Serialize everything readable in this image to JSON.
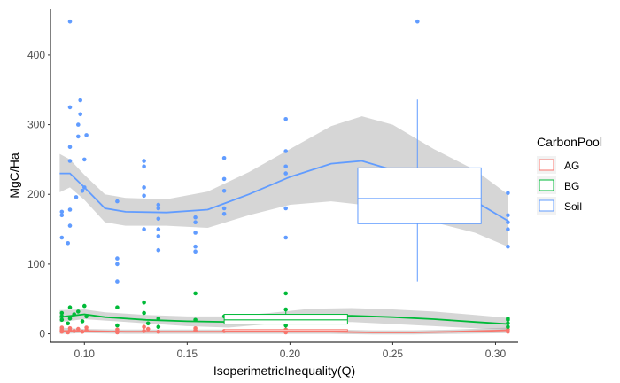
{
  "chart_data": {
    "type": "scatter",
    "xlabel": "IsoperimetricInequality(Q)",
    "ylabel": "MgC/Ha",
    "xlim": [
      0.0835,
      0.311
    ],
    "ylim": [
      -12,
      466
    ],
    "x_ticks": [
      0.1,
      0.15,
      0.2,
      0.25,
      0.3
    ],
    "x_tick_labels": [
      "0.10",
      "0.15",
      "0.20",
      "0.25",
      "0.30"
    ],
    "y_ticks": [
      0,
      100,
      200,
      300,
      400
    ],
    "y_tick_labels": [
      "0",
      "100",
      "200",
      "300",
      "400"
    ],
    "grid": false,
    "legend": {
      "title": "CarbonPool",
      "position": "right",
      "entries": [
        {
          "name": "AG",
          "color": "#F8766D"
        },
        {
          "name": "BG",
          "color": "#00BA38"
        },
        {
          "name": "Soil",
          "color": "#619CFF"
        }
      ]
    },
    "series": [
      {
        "name": "AG",
        "color": "#F8766D",
        "points": [
          [
            0.089,
            3
          ],
          [
            0.089,
            6
          ],
          [
            0.089,
            9
          ],
          [
            0.092,
            2
          ],
          [
            0.093,
            5
          ],
          [
            0.093,
            8
          ],
          [
            0.095,
            4
          ],
          [
            0.097,
            7
          ],
          [
            0.099,
            3
          ],
          [
            0.101,
            5
          ],
          [
            0.101,
            9
          ],
          [
            0.116,
            2
          ],
          [
            0.116,
            6
          ],
          [
            0.129,
            4
          ],
          [
            0.129,
            10
          ],
          [
            0.131,
            7
          ],
          [
            0.136,
            3
          ],
          [
            0.154,
            5
          ],
          [
            0.154,
            8
          ],
          [
            0.168,
            4
          ],
          [
            0.198,
            6
          ],
          [
            0.198,
            2
          ],
          [
            0.306,
            3
          ],
          [
            0.306,
            6
          ]
        ],
        "smooth": [
          [
            0.088,
            4
          ],
          [
            0.1,
            4
          ],
          [
            0.12,
            3
          ],
          [
            0.14,
            3
          ],
          [
            0.16,
            3
          ],
          [
            0.18,
            3
          ],
          [
            0.2,
            3
          ],
          [
            0.22,
            3
          ],
          [
            0.24,
            2
          ],
          [
            0.26,
            2
          ],
          [
            0.28,
            3
          ],
          [
            0.306,
            5
          ]
        ],
        "band": [
          [
            0.088,
            0,
            9
          ],
          [
            0.1,
            1,
            7
          ],
          [
            0.12,
            0,
            6
          ],
          [
            0.14,
            0,
            6
          ],
          [
            0.16,
            0,
            6
          ],
          [
            0.18,
            0,
            6
          ],
          [
            0.2,
            0,
            6
          ],
          [
            0.22,
            0,
            6
          ],
          [
            0.24,
            -1,
            5
          ],
          [
            0.26,
            -1,
            5
          ],
          [
            0.28,
            0,
            6
          ],
          [
            0.306,
            1,
            9
          ]
        ],
        "boxplot": {
          "x_range": [
            0.168,
            0.228
          ],
          "q1": 3,
          "median": 4,
          "q3": 6,
          "whisker_x": 0.198,
          "lower": 1,
          "upper": 9
        }
      },
      {
        "name": "BG",
        "color": "#00BA38",
        "points": [
          [
            0.089,
            20
          ],
          [
            0.089,
            25
          ],
          [
            0.089,
            30
          ],
          [
            0.092,
            15
          ],
          [
            0.093,
            22
          ],
          [
            0.093,
            38
          ],
          [
            0.095,
            28
          ],
          [
            0.097,
            32
          ],
          [
            0.099,
            18
          ],
          [
            0.1,
            40
          ],
          [
            0.101,
            25
          ],
          [
            0.116,
            12
          ],
          [
            0.116,
            38
          ],
          [
            0.129,
            45
          ],
          [
            0.129,
            30
          ],
          [
            0.131,
            15
          ],
          [
            0.136,
            22
          ],
          [
            0.136,
            10
          ],
          [
            0.154,
            58
          ],
          [
            0.154,
            20
          ],
          [
            0.168,
            25
          ],
          [
            0.198,
            58
          ],
          [
            0.198,
            12
          ],
          [
            0.198,
            35
          ],
          [
            0.306,
            10
          ],
          [
            0.306,
            15
          ],
          [
            0.306,
            20
          ],
          [
            0.306,
            22
          ]
        ],
        "smooth": [
          [
            0.088,
            24
          ],
          [
            0.1,
            28
          ],
          [
            0.11,
            24
          ],
          [
            0.13,
            20
          ],
          [
            0.15,
            18
          ],
          [
            0.17,
            17
          ],
          [
            0.19,
            22
          ],
          [
            0.21,
            26
          ],
          [
            0.23,
            26
          ],
          [
            0.25,
            24
          ],
          [
            0.27,
            21
          ],
          [
            0.29,
            17
          ],
          [
            0.306,
            14
          ]
        ],
        "band": [
          [
            0.088,
            17,
            34
          ],
          [
            0.1,
            21,
            35
          ],
          [
            0.11,
            19,
            31
          ],
          [
            0.13,
            15,
            27
          ],
          [
            0.15,
            11,
            25
          ],
          [
            0.17,
            9,
            25
          ],
          [
            0.19,
            14,
            30
          ],
          [
            0.21,
            17,
            36
          ],
          [
            0.23,
            17,
            37
          ],
          [
            0.25,
            14,
            35
          ],
          [
            0.27,
            11,
            32
          ],
          [
            0.29,
            8,
            27
          ],
          [
            0.306,
            6,
            23
          ]
        ],
        "boxplot": {
          "x_range": [
            0.168,
            0.228
          ],
          "q1": 14,
          "median": 20,
          "q3": 28,
          "whisker_x": 0.198,
          "lower": 8,
          "upper": 36
        }
      },
      {
        "name": "Soil",
        "color": "#619CFF",
        "points": [
          [
            0.089,
            138
          ],
          [
            0.089,
            170
          ],
          [
            0.089,
            175
          ],
          [
            0.092,
            130
          ],
          [
            0.093,
            155
          ],
          [
            0.093,
            178
          ],
          [
            0.093,
            248
          ],
          [
            0.093,
            268
          ],
          [
            0.093,
            325
          ],
          [
            0.093,
            448
          ],
          [
            0.096,
            196
          ],
          [
            0.097,
            283
          ],
          [
            0.097,
            300
          ],
          [
            0.098,
            315
          ],
          [
            0.098,
            335
          ],
          [
            0.099,
            205
          ],
          [
            0.1,
            210
          ],
          [
            0.1,
            250
          ],
          [
            0.101,
            285
          ],
          [
            0.116,
            75
          ],
          [
            0.116,
            100
          ],
          [
            0.116,
            108
          ],
          [
            0.116,
            190
          ],
          [
            0.129,
            150
          ],
          [
            0.129,
            198
          ],
          [
            0.129,
            210
          ],
          [
            0.129,
            240
          ],
          [
            0.129,
            248
          ],
          [
            0.136,
            120
          ],
          [
            0.136,
            140
          ],
          [
            0.136,
            150
          ],
          [
            0.136,
            165
          ],
          [
            0.136,
            180
          ],
          [
            0.136,
            185
          ],
          [
            0.154,
            118
          ],
          [
            0.154,
            125
          ],
          [
            0.154,
            145
          ],
          [
            0.154,
            160
          ],
          [
            0.154,
            167
          ],
          [
            0.168,
            172
          ],
          [
            0.168,
            180
          ],
          [
            0.168,
            205
          ],
          [
            0.168,
            222
          ],
          [
            0.168,
            252
          ],
          [
            0.198,
            138
          ],
          [
            0.198,
            180
          ],
          [
            0.198,
            230
          ],
          [
            0.198,
            240
          ],
          [
            0.198,
            262
          ],
          [
            0.198,
            308
          ],
          [
            0.262,
            448
          ],
          [
            0.306,
            125
          ],
          [
            0.306,
            150
          ],
          [
            0.306,
            160
          ],
          [
            0.306,
            170
          ],
          [
            0.306,
            202
          ]
        ],
        "smooth": [
          [
            0.088,
            230
          ],
          [
            0.093,
            230
          ],
          [
            0.1,
            210
          ],
          [
            0.11,
            180
          ],
          [
            0.12,
            175
          ],
          [
            0.14,
            174
          ],
          [
            0.16,
            178
          ],
          [
            0.18,
            200
          ],
          [
            0.2,
            225
          ],
          [
            0.22,
            244
          ],
          [
            0.235,
            248
          ],
          [
            0.25,
            235
          ],
          [
            0.27,
            212
          ],
          [
            0.29,
            190
          ],
          [
            0.306,
            162
          ]
        ],
        "band": [
          [
            0.088,
            203,
            258
          ],
          [
            0.093,
            210,
            250
          ],
          [
            0.1,
            192,
            228
          ],
          [
            0.11,
            160,
            200
          ],
          [
            0.12,
            155,
            195
          ],
          [
            0.14,
            155,
            193
          ],
          [
            0.16,
            152,
            204
          ],
          [
            0.18,
            170,
            232
          ],
          [
            0.2,
            185,
            265
          ],
          [
            0.22,
            190,
            298
          ],
          [
            0.235,
            185,
            312
          ],
          [
            0.25,
            170,
            300
          ],
          [
            0.27,
            160,
            265
          ],
          [
            0.29,
            145,
            235
          ],
          [
            0.306,
            125,
            200
          ]
        ],
        "boxplot": {
          "x_range": [
            0.233,
            0.293
          ],
          "q1": 158,
          "median": 194,
          "q3": 238,
          "whisker_x": 0.262,
          "lower": 75,
          "upper": 336
        }
      }
    ]
  }
}
